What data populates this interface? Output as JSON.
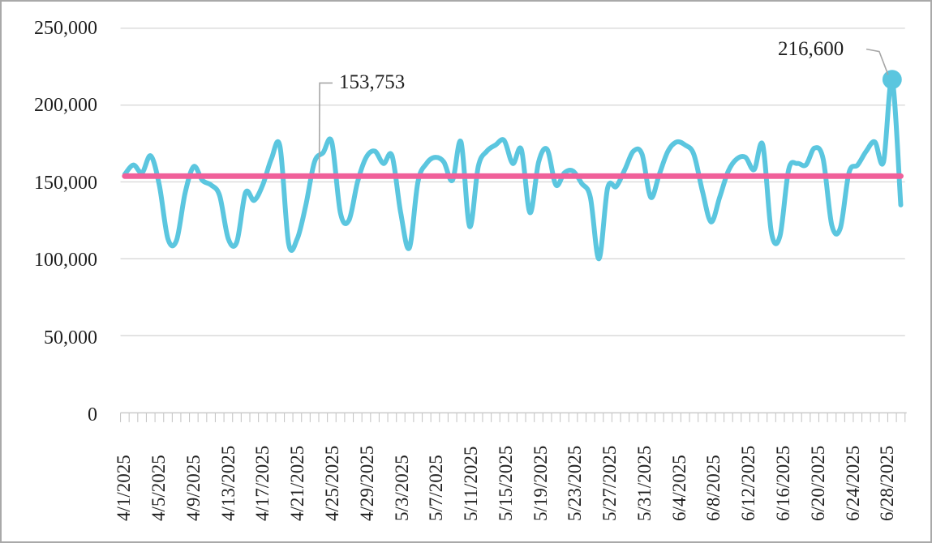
{
  "chart_data": {
    "type": "line",
    "title": "",
    "grid": "horizontal",
    "legend_position": "none",
    "ylim": [
      0,
      250000
    ],
    "y_tick_labels": [
      "250,000",
      "200,000",
      "150,000",
      "100,000",
      "50,000",
      "0"
    ],
    "y_tick_values": [
      250000,
      200000,
      150000,
      100000,
      50000,
      0
    ],
    "x_tick_labels": [
      "4/1/2025",
      "4/5/2025",
      "4/9/2025",
      "4/13/2025",
      "4/17/2025",
      "4/21/2025",
      "4/25/2025",
      "4/29/2025",
      "5/3/2025",
      "5/7/2025",
      "5/11/2025",
      "5/15/2025",
      "5/19/2025",
      "5/23/2025",
      "5/27/2025",
      "5/31/2025",
      "6/4/2025",
      "6/8/2025",
      "6/12/2025",
      "6/16/2025",
      "6/20/2025",
      "6/24/2025",
      "6/28/2025"
    ],
    "x_tick_step_days": 4,
    "series": [
      {
        "name": "daily-values",
        "style": "smoothed-line",
        "color": "#5bc6df",
        "values": [
          155000,
          161000,
          156000,
          167000,
          148000,
          113000,
          112000,
          143000,
          160000,
          151000,
          148000,
          141000,
          113000,
          111000,
          143000,
          138000,
          148000,
          165000,
          173000,
          110000,
          113000,
          135000,
          163000,
          169000,
          176000,
          130000,
          125000,
          150000,
          166000,
          170000,
          162000,
          167000,
          130000,
          107000,
          150000,
          162000,
          166000,
          163000,
          151000,
          176000,
          121000,
          160000,
          170000,
          174000,
          177000,
          162000,
          171000,
          130000,
          163000,
          171000,
          148000,
          156000,
          157000,
          149000,
          140000,
          100000,
          146000,
          147000,
          158000,
          170000,
          168000,
          140000,
          155000,
          170000,
          176000,
          174000,
          168000,
          144000,
          124000,
          140000,
          157000,
          165000,
          166000,
          158000,
          174000,
          117000,
          115000,
          158000,
          162000,
          161000,
          172000,
          165000,
          122000,
          120000,
          156000,
          161000,
          170000,
          176000,
          163000,
          216600,
          135000
        ]
      },
      {
        "name": "reference-line",
        "style": "constant-line",
        "color": "#f0609a",
        "value": 153753
      }
    ],
    "annotations": [
      {
        "text": "153,753",
        "type": "callout",
        "points_to": "reference-line"
      },
      {
        "text": "216,600",
        "type": "callout",
        "points_to": "highlighted-point",
        "value": 216600
      }
    ]
  },
  "colors": {
    "series": "#5bc6df",
    "reference": "#f0609a",
    "gridline": "#d9d9d9",
    "axis": "#c6c6c6",
    "leader": "#a6a6a6",
    "text": "#1f1f1f",
    "border": "#a9a9a9",
    "background": "#ffffff"
  }
}
